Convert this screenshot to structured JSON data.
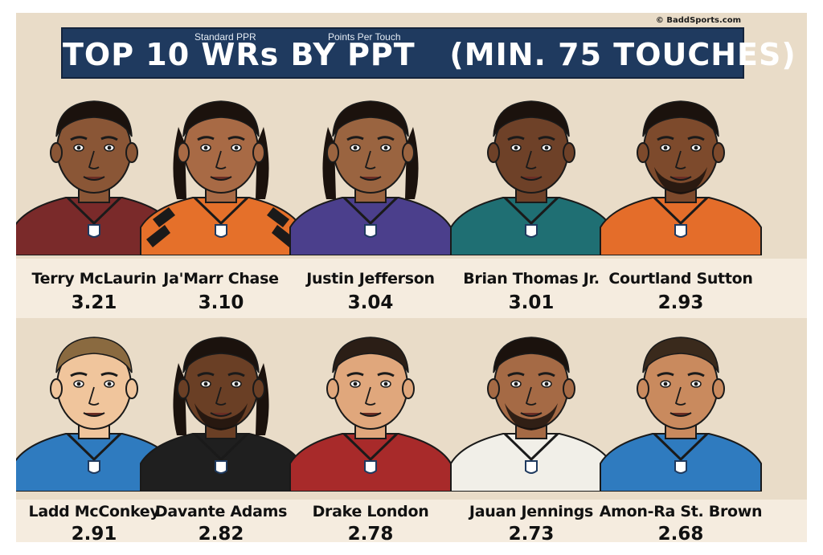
{
  "credit": "© BaddSports.com",
  "banner": {
    "title": "TOP 10 WRs BY PPT   (MIN. 75 TOUCHES)",
    "subtitle_left": "Standard PPR",
    "subtitle_right": "Points Per Touch"
  },
  "players": [
    {
      "name": "Terry McLaurin",
      "ppt": "3.21",
      "jersey_color": "#7a2a2a",
      "skin": "#8a5636",
      "hair": "#1b120d",
      "style": "short"
    },
    {
      "name": "Ja'Marr Chase",
      "ppt": "3.10",
      "jersey_color": "#e5702a",
      "skin": "#a86a45",
      "hair": "#1b120d",
      "style": "locs",
      "stripes": true
    },
    {
      "name": "Justin Jefferson",
      "ppt": "3.04",
      "jersey_color": "#4b3f8c",
      "skin": "#9a6440",
      "hair": "#1b120d",
      "style": "locs"
    },
    {
      "name": "Brian Thomas Jr.",
      "ppt": "3.01",
      "jersey_color": "#1f6f73",
      "skin": "#6e4128",
      "hair": "#1b120d",
      "style": "short"
    },
    {
      "name": "Courtland Sutton",
      "ppt": "2.93",
      "jersey_color": "#e46d2a",
      "skin": "#7d4a2c",
      "hair": "#1b120d",
      "style": "short",
      "beard": true
    },
    {
      "name": "Ladd McConkey",
      "ppt": "2.91",
      "jersey_color": "#2f7bbf",
      "skin": "#f0c59c",
      "hair": "#8a6a40",
      "style": "short"
    },
    {
      "name": "Davante Adams",
      "ppt": "2.82",
      "jersey_color": "#1f1f1f",
      "skin": "#6a3f25",
      "hair": "#1b120d",
      "style": "locs",
      "beard": true
    },
    {
      "name": "Drake London",
      "ppt": "2.78",
      "jersey_color": "#a82a2a",
      "skin": "#e0a77c",
      "hair": "#2b1e16",
      "style": "short"
    },
    {
      "name": "Jauan Jennings",
      "ppt": "2.73",
      "jersey_color": "#f1efe8",
      "skin": "#a56a45",
      "hair": "#1b120d",
      "style": "short",
      "beard": true
    },
    {
      "name": "Amon-Ra St. Brown",
      "ppt": "2.68",
      "jersey_color": "#2f7bbf",
      "skin": "#c98a5e",
      "hair": "#3a2a1c",
      "style": "short"
    }
  ]
}
